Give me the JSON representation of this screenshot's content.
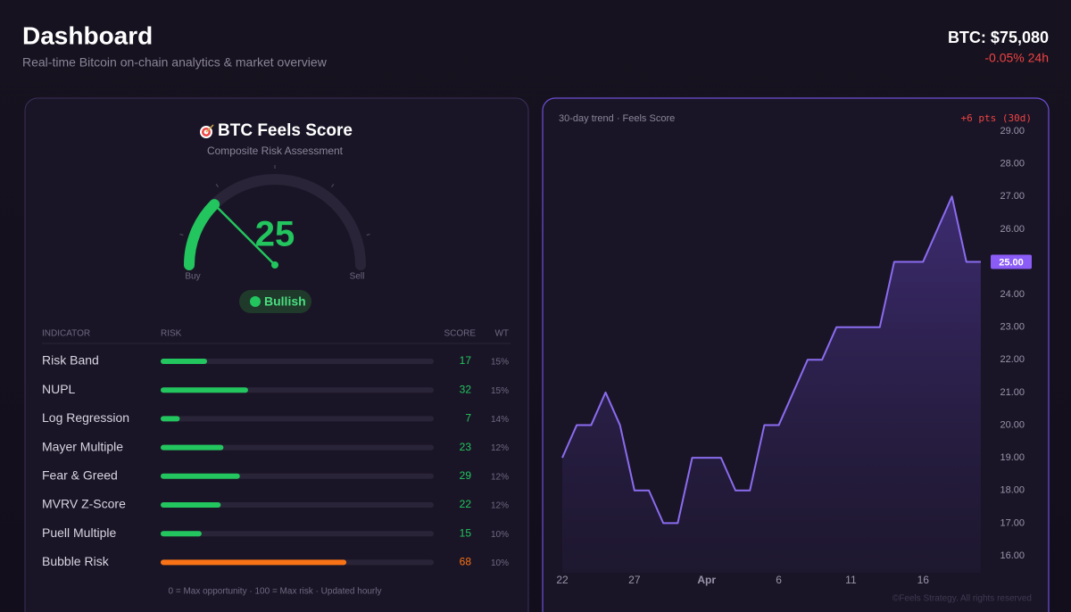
{
  "header": {
    "title": "Dashboard",
    "subtitle": "Real-time Bitcoin on-chain analytics & market overview"
  },
  "price": {
    "label": "BTC: $75,080",
    "change": "-0.05% 24h"
  },
  "score_card": {
    "title": "BTC Feels Score",
    "subtitle": "Composite Risk Assessment",
    "gauge": {
      "value": 25,
      "range": [
        0,
        100
      ],
      "min_label": "Buy",
      "max_label": "Sell",
      "color": "#22c55e"
    },
    "status": "Bullish"
  },
  "table": {
    "columns": [
      "INDICATOR",
      "RISK",
      "SCORE",
      "WT"
    ],
    "range": [
      0,
      100
    ],
    "rows": [
      {
        "name": "Risk Band",
        "score": 17,
        "weight": "15%",
        "color": "#22c55e"
      },
      {
        "name": "NUPL",
        "score": 32,
        "weight": "15%",
        "color": "#22c55e"
      },
      {
        "name": "Log Regression",
        "score": 7,
        "weight": "14%",
        "color": "#22c55e"
      },
      {
        "name": "Mayer Multiple",
        "score": 23,
        "weight": "12%",
        "color": "#22c55e"
      },
      {
        "name": "Fear & Greed",
        "score": 29,
        "weight": "12%",
        "color": "#22c55e"
      },
      {
        "name": "MVRV Z-Score",
        "score": 22,
        "weight": "12%",
        "color": "#22c55e"
      },
      {
        "name": "Puell Multiple",
        "score": 15,
        "weight": "10%",
        "color": "#22c55e"
      },
      {
        "name": "Bubble Risk",
        "score": 68,
        "weight": "10%",
        "color": "#f97316"
      }
    ],
    "footnote": "0 = Max opportunity · 100 = Max risk · Updated hourly"
  },
  "chart_data": {
    "type": "line",
    "title": "30-day trend · Feels Score",
    "annotation": "+6 pts (30d)",
    "categories": [
      "22",
      null,
      null,
      null,
      null,
      "27",
      null,
      null,
      null,
      null,
      "Apr",
      null,
      null,
      null,
      null,
      "6",
      null,
      null,
      null,
      null,
      "11",
      null,
      null,
      null,
      null,
      "16",
      null,
      null,
      null,
      null
    ],
    "values": [
      19,
      20,
      20,
      21,
      20,
      18,
      18,
      17,
      17,
      19,
      19,
      19,
      18,
      18,
      20,
      20,
      21,
      22,
      22,
      23,
      23,
      23,
      23,
      25,
      25,
      25,
      26,
      27,
      25,
      25
    ],
    "value_labels": [
      null,
      null,
      null,
      null,
      null,
      null,
      null,
      null,
      null,
      null,
      null,
      null,
      null,
      null,
      null,
      null,
      null,
      null,
      null,
      null,
      null,
      null,
      null,
      null,
      null,
      null,
      null,
      null,
      null,
      "25.00"
    ],
    "color": "#8b6cf0",
    "ylim": [
      16,
      29
    ],
    "yticks": [
      {
        "value": 16,
        "label": "16.00"
      },
      {
        "value": 17,
        "label": "17.00"
      },
      {
        "value": 18,
        "label": "18.00"
      },
      {
        "value": 19,
        "label": "19.00"
      },
      {
        "value": 20,
        "label": "20.00"
      },
      {
        "value": 21,
        "label": "21.00"
      },
      {
        "value": 22,
        "label": "22.00"
      },
      {
        "value": 23,
        "label": "23.00"
      },
      {
        "value": 24,
        "label": "24.00"
      },
      {
        "value": 25,
        "label": "25.00"
      },
      {
        "value": 26,
        "label": "26.00"
      },
      {
        "value": 27,
        "label": "27.00"
      },
      {
        "value": 28,
        "label": "28.00"
      },
      {
        "value": 29,
        "label": "29.00"
      }
    ]
  },
  "footer": {
    "copyright": "©Feels Strategy. All rights reserved"
  }
}
